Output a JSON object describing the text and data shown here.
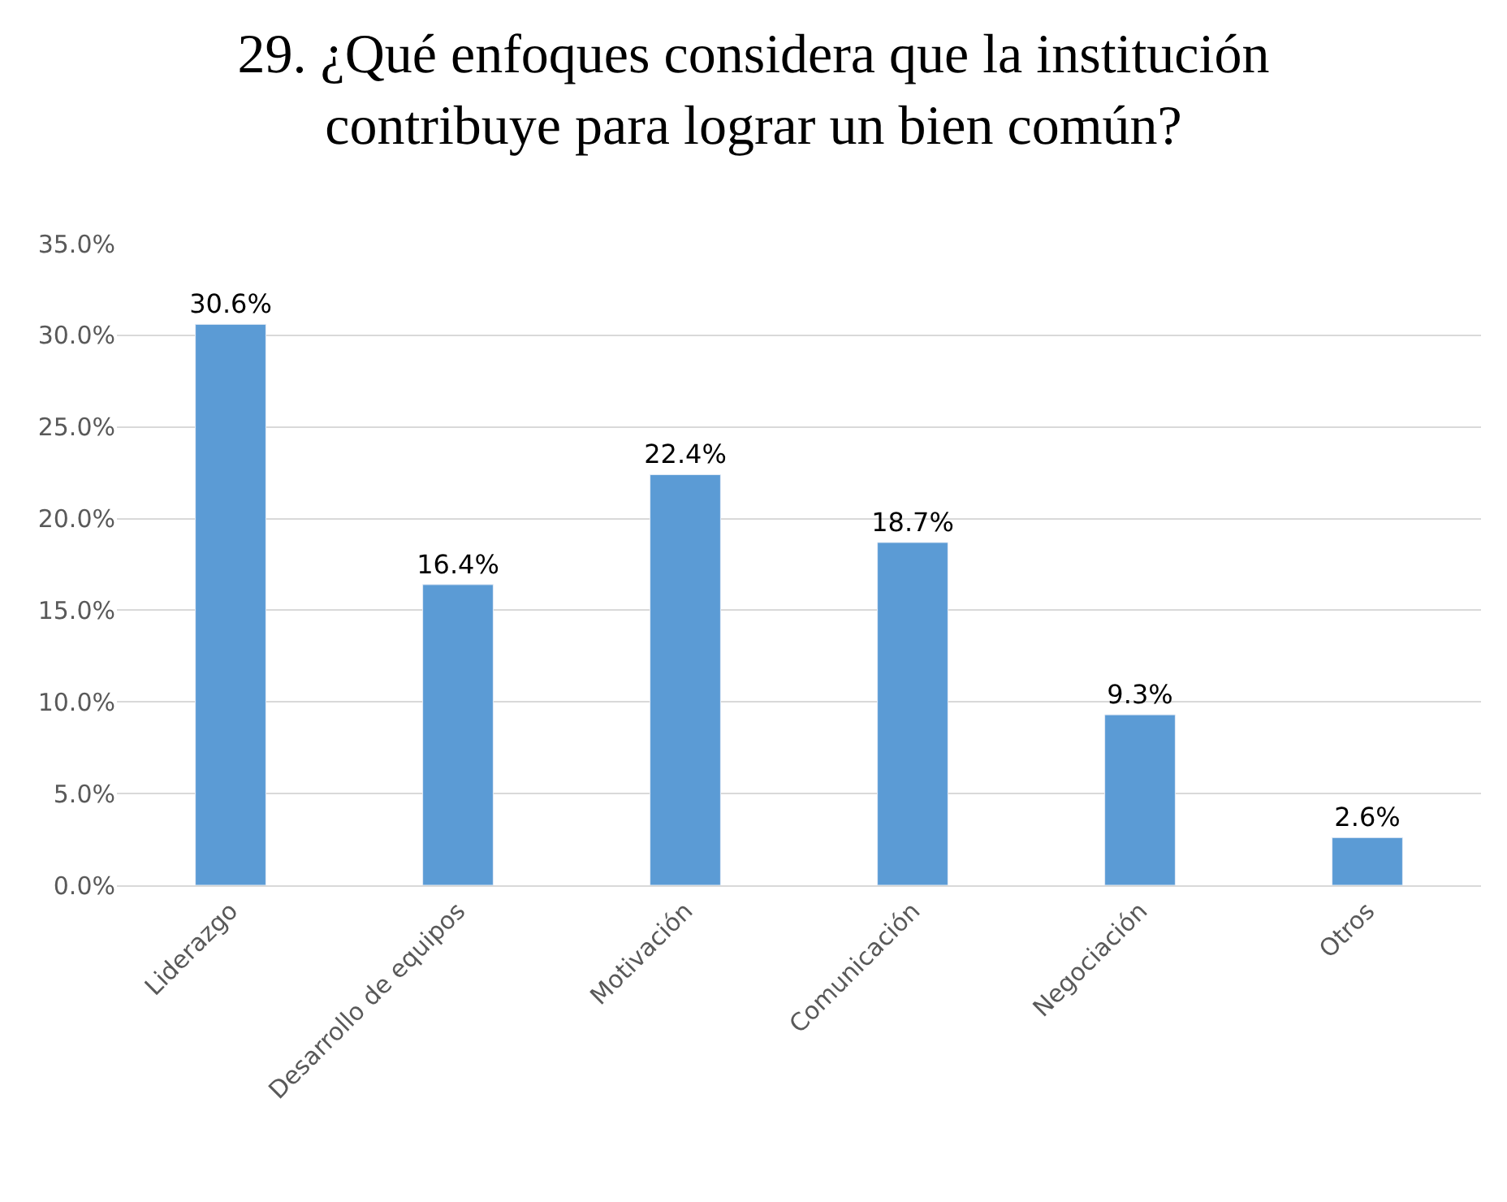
{
  "chart_data": {
    "type": "bar",
    "title": "29. ¿Qué enfoques considera que la institución contribuye para lograr un bien común?",
    "categories": [
      "Liderazgo",
      "Desarrollo de equipos",
      "Motivación",
      "Comunicación",
      "Negociación",
      "Otros"
    ],
    "values": [
      30.6,
      16.4,
      22.4,
      18.7,
      9.3,
      2.6
    ],
    "value_labels": [
      "30.6%",
      "16.4%",
      "22.4%",
      "18.7%",
      "9.3%",
      "2.6%"
    ],
    "color": "#5b9bd5",
    "ylim": [
      0,
      35
    ],
    "yticks": [
      {
        "value": 0,
        "label": "0.0%"
      },
      {
        "value": 5,
        "label": "5.0%"
      },
      {
        "value": 10,
        "label": "10.0%"
      },
      {
        "value": 15,
        "label": "15.0%"
      },
      {
        "value": 20,
        "label": "20.0%"
      },
      {
        "value": 25,
        "label": "25.0%"
      },
      {
        "value": 30,
        "label": "30.0%"
      },
      {
        "value": 35,
        "label": "35.0%"
      }
    ],
    "grid": "y"
  }
}
